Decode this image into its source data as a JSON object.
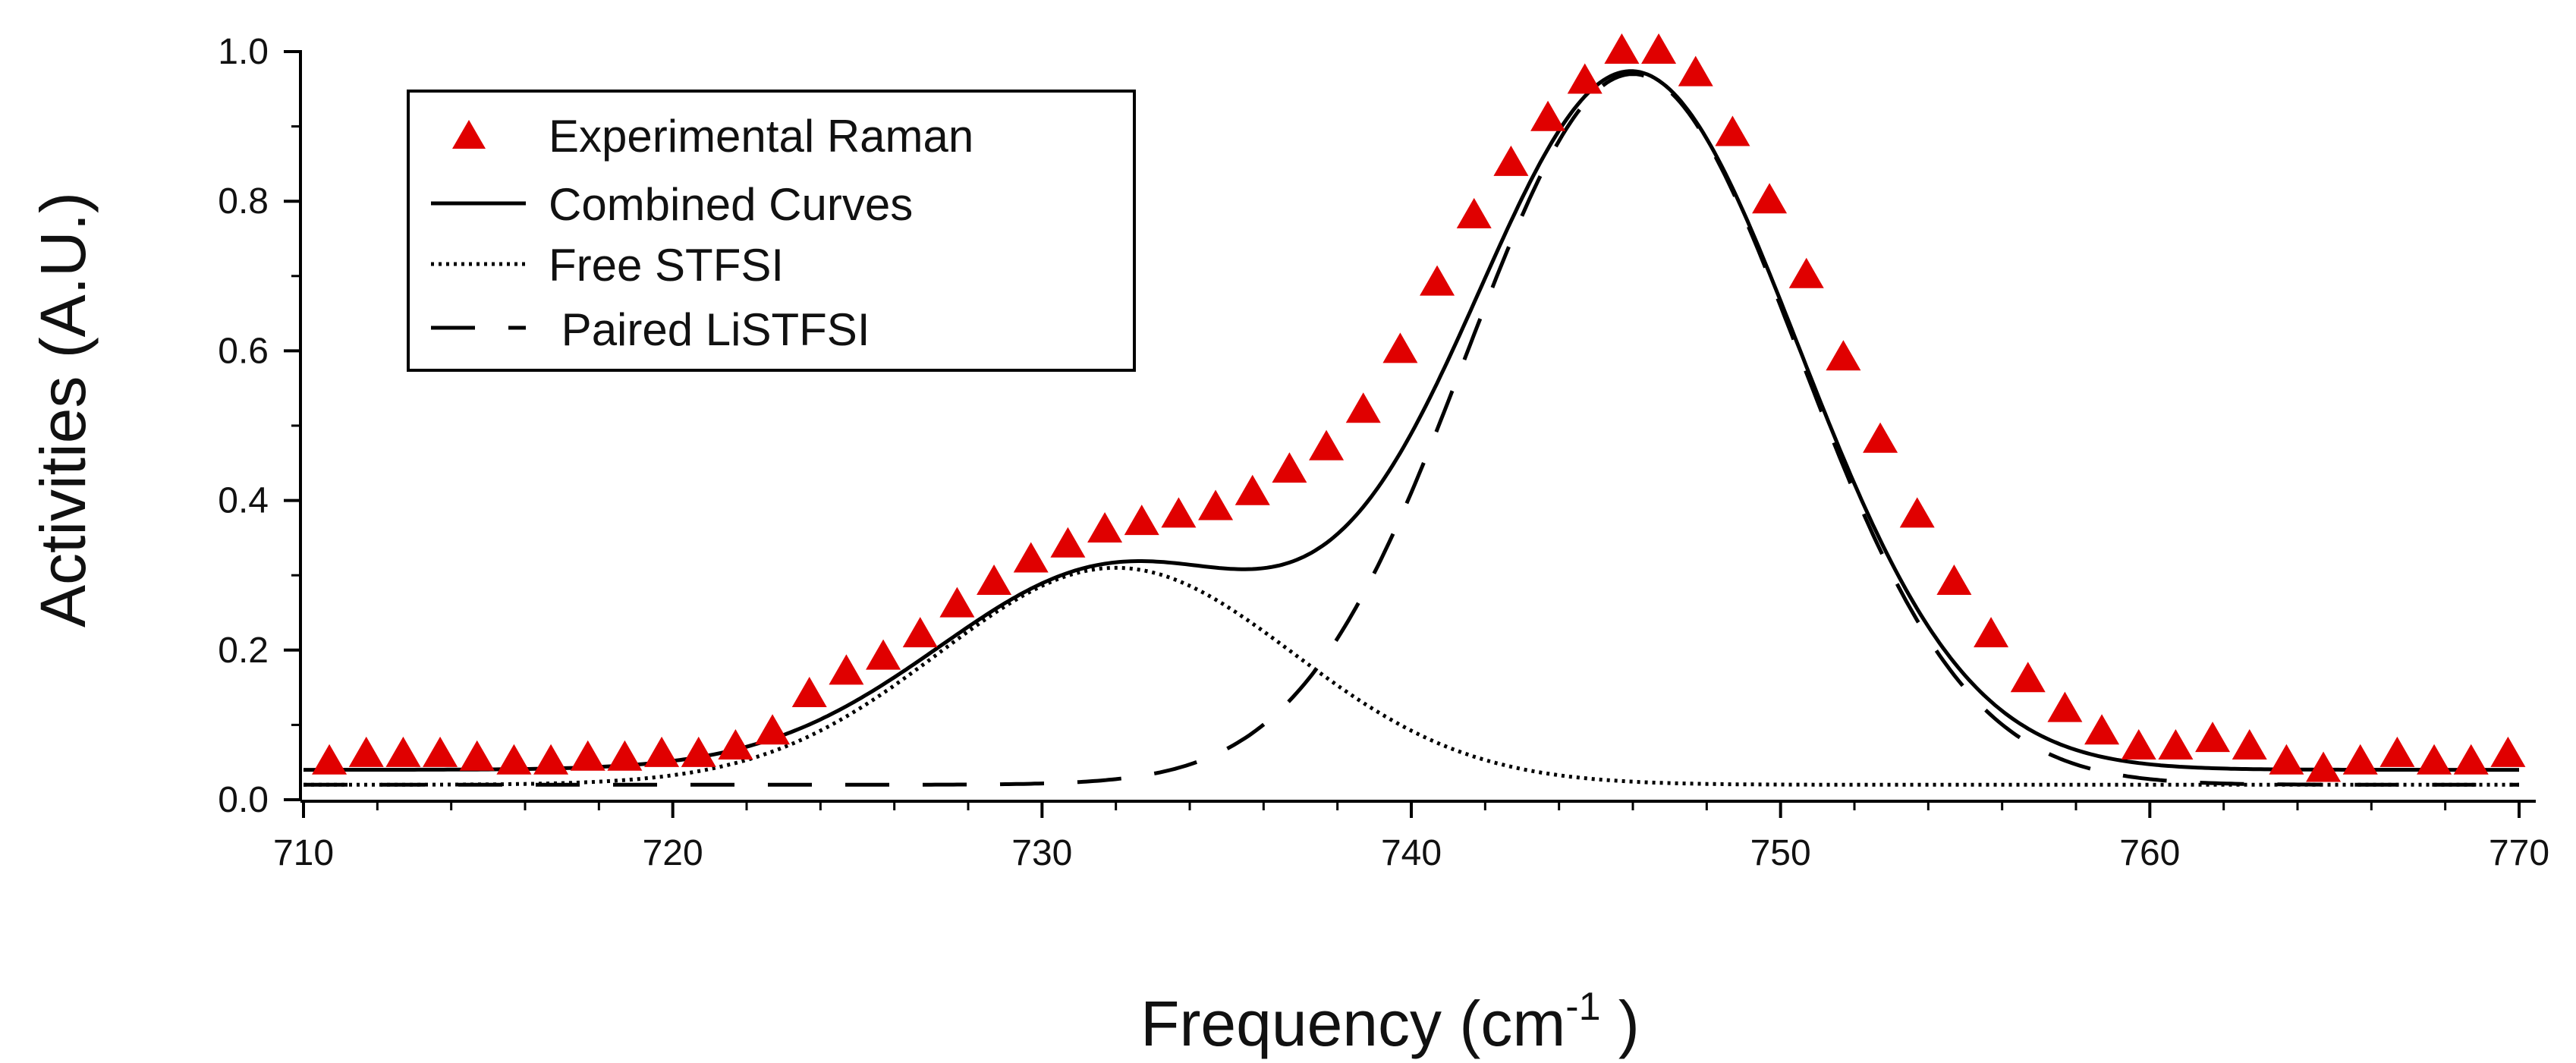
{
  "chart_data": {
    "type": "line",
    "title": "",
    "xlabel": "Frequency (cm",
    "xlabel_sup": "-1",
    "xlabel_tail": " )",
    "ylabel": "Activities (A.U.)",
    "xlim": [
      710,
      770
    ],
    "ylim": [
      0.0,
      1.0
    ],
    "x_ticks": [
      710,
      720,
      730,
      740,
      750,
      760,
      770
    ],
    "x_tick_labels": [
      "710",
      "720",
      "730",
      "740",
      "750",
      "760",
      "770"
    ],
    "y_ticks": [
      0.0,
      0.2,
      0.4,
      0.6,
      0.8,
      1.0
    ],
    "y_tick_labels": [
      "0.0",
      "0.2",
      "0.4",
      "0.6",
      "0.8",
      "1.0"
    ],
    "grid": false,
    "legend_position": "top-left",
    "series": [
      {
        "name": "Experimental Raman",
        "style": "markers-triangle",
        "color": "#e00000",
        "x": [
          710.7,
          711.7,
          712.7,
          713.7,
          714.7,
          715.7,
          716.7,
          717.7,
          718.7,
          719.7,
          720.7,
          721.7,
          722.7,
          723.7,
          724.7,
          725.7,
          726.7,
          727.7,
          728.7,
          729.7,
          730.7,
          731.7,
          732.7,
          733.7,
          734.7,
          735.7,
          736.7,
          737.7,
          738.7,
          739.7,
          740.7,
          741.7,
          742.7,
          743.7,
          744.7,
          745.7,
          746.7,
          747.7,
          748.7,
          749.7,
          750.7,
          751.7,
          752.7,
          753.7,
          754.7,
          755.7,
          756.7,
          757.7,
          758.7,
          759.7,
          760.7,
          761.7,
          762.7,
          763.7,
          764.7,
          765.7,
          766.7,
          767.7,
          768.7,
          769.7
        ],
        "y": [
          0.05,
          0.06,
          0.06,
          0.06,
          0.055,
          0.05,
          0.05,
          0.055,
          0.055,
          0.06,
          0.06,
          0.07,
          0.09,
          0.14,
          0.17,
          0.19,
          0.22,
          0.26,
          0.29,
          0.32,
          0.34,
          0.36,
          0.37,
          0.38,
          0.39,
          0.41,
          0.44,
          0.47,
          0.52,
          0.6,
          0.69,
          0.78,
          0.85,
          0.91,
          0.96,
          1.0,
          1.0,
          0.97,
          0.89,
          0.8,
          0.7,
          0.59,
          0.48,
          0.38,
          0.29,
          0.22,
          0.16,
          0.12,
          0.09,
          0.07,
          0.07,
          0.08,
          0.07,
          0.05,
          0.04,
          0.05,
          0.06,
          0.05,
          0.05,
          0.06
        ]
      },
      {
        "name": "Combined Curves",
        "style": "solid",
        "color": "#000000",
        "model": {
          "baseline": 0.04,
          "components": [
            {
              "amp": 0.27,
              "center": 732.0,
              "sigma": 4.8
            },
            {
              "amp": 0.93,
              "center": 746.0,
              "sigma": 4.5
            }
          ]
        }
      },
      {
        "name": "Free STFSI",
        "style": "dotted",
        "color": "#000000",
        "model": {
          "baseline": 0.02,
          "components": [
            {
              "amp": 0.29,
              "center": 732.0,
              "sigma": 4.8
            }
          ]
        }
      },
      {
        "name": " Paired LiSTFSI",
        "style": "dashed",
        "color": "#000000",
        "model": {
          "baseline": 0.02,
          "components": [
            {
              "amp": 0.95,
              "center": 746.0,
              "sigma": 4.5
            }
          ]
        }
      }
    ]
  }
}
